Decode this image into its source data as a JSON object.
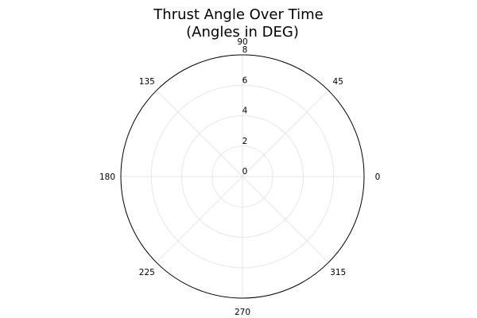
{
  "chart_data": {
    "type": "polar",
    "title": "Thrust Angle Over Time",
    "subtitle": "(Angles in DEG)",
    "angle_unit": "degrees",
    "angular_ticks": [
      "0",
      "45",
      "90",
      "135",
      "180",
      "225",
      "270",
      "315"
    ],
    "radial_ticks": [
      "0",
      "2",
      "4",
      "6",
      "8"
    ],
    "radial_range": [
      0,
      8
    ],
    "grid": true,
    "series": []
  }
}
